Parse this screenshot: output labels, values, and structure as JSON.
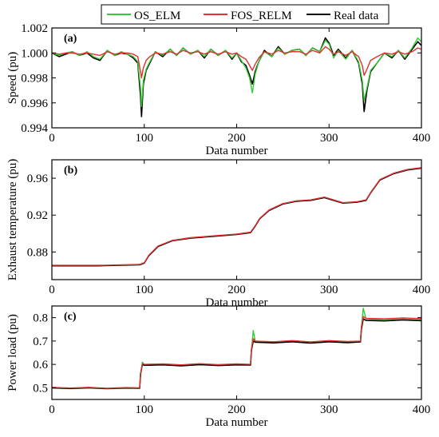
{
  "legend": [
    {
      "name": "OS_ELM",
      "color": "#33cc33"
    },
    {
      "name": "FOS_RELM",
      "color": "#e03030"
    },
    {
      "name": "Real data",
      "color": "#000000"
    }
  ],
  "chart_data": [
    {
      "type": "line",
      "panel_label": "(a)",
      "xlabel": "Data number",
      "ylabel": "Speed (pu)",
      "xlim": [
        0,
        400
      ],
      "ylim": [
        0.994,
        1.002
      ],
      "xticks": [
        0,
        100,
        200,
        300,
        400
      ],
      "yticks": [
        0.994,
        0.996,
        0.998,
        1.0,
        1.002
      ],
      "ytick_labels": [
        "0.994",
        "0.996",
        "0.998",
        "1.000",
        "1.002"
      ],
      "series": [
        {
          "name": "Real data",
          "color": "#000000",
          "x": [
            0,
            8,
            15,
            22,
            30,
            38,
            45,
            52,
            60,
            68,
            75,
            82,
            88,
            93,
            96,
            97,
            99,
            102,
            106,
            112,
            120,
            128,
            135,
            142,
            150,
            158,
            165,
            172,
            180,
            188,
            195,
            200,
            205,
            210,
            214,
            217,
            220,
            224,
            230,
            238,
            245,
            252,
            260,
            268,
            275,
            282,
            290,
            296,
            300,
            305,
            310,
            318,
            325,
            332,
            336,
            338,
            341,
            345,
            352,
            360,
            368,
            375,
            382,
            390,
            396,
            400
          ],
          "y": [
            1.0,
            0.9997,
            0.9999,
            1.0001,
            0.9998,
            1.0,
            0.9996,
            0.9994,
            1.0002,
            0.9998,
            1.0,
            0.9999,
            0.9996,
            0.9992,
            0.9965,
            0.9949,
            0.9975,
            0.9986,
            0.9992,
            1.0001,
            0.9997,
            1.0003,
            0.9998,
            1.0004,
            0.9999,
            1.0002,
            0.9996,
            1.0003,
            0.9998,
            1.0002,
            0.9995,
            1.0,
            0.9993,
            0.999,
            0.9982,
            0.9975,
            0.9985,
            0.9993,
            1.0002,
            0.9997,
            1.0005,
            0.9999,
            1.0002,
            1.0003,
            0.9998,
            1.0004,
            1.0001,
            1.0012,
            1.0008,
            0.9998,
            1.0003,
            0.9996,
            1.0002,
            0.9992,
            0.9975,
            0.9953,
            0.997,
            0.9985,
            0.9992,
            1.0,
            0.9996,
            1.0002,
            0.9995,
            1.0003,
            1.0009,
            1.0006
          ]
        },
        {
          "name": "OS_ELM",
          "color": "#33cc33",
          "x": [
            0,
            8,
            15,
            22,
            30,
            38,
            45,
            52,
            60,
            68,
            75,
            82,
            88,
            93,
            96,
            97,
            99,
            102,
            106,
            112,
            120,
            128,
            135,
            142,
            150,
            158,
            165,
            172,
            180,
            188,
            195,
            200,
            205,
            210,
            214,
            217,
            220,
            224,
            230,
            238,
            245,
            252,
            260,
            268,
            275,
            282,
            290,
            296,
            300,
            305,
            310,
            318,
            325,
            332,
            336,
            338,
            341,
            345,
            352,
            360,
            368,
            375,
            382,
            390,
            396,
            400
          ],
          "y": [
            1.0,
            0.9998,
            1.0,
            1.0001,
            0.9998,
            1.0001,
            0.9997,
            0.9995,
            1.0002,
            0.9998,
            1.0001,
            0.9999,
            0.9997,
            0.9993,
            0.9972,
            0.9957,
            0.9978,
            0.9987,
            0.9993,
            1.0001,
            0.9998,
            1.0003,
            0.9998,
            1.0004,
            0.9999,
            1.0002,
            0.9997,
            1.0003,
            0.9998,
            1.0002,
            0.9996,
            1.0,
            0.9994,
            0.9988,
            0.998,
            0.9968,
            0.9983,
            0.9993,
            1.0001,
            0.9997,
            1.0004,
            0.9999,
            1.0002,
            1.0003,
            0.9998,
            1.0004,
            1.0001,
            1.001,
            1.0007,
            0.9996,
            1.0002,
            0.9995,
            1.0002,
            0.9993,
            0.9978,
            0.9962,
            0.9972,
            0.9986,
            0.9992,
            1.0,
            0.9997,
            1.0002,
            0.9996,
            1.0004,
            1.0012,
            1.0009
          ]
        },
        {
          "name": "FOS_RELM",
          "color": "#e03030",
          "x": [
            0,
            8,
            15,
            22,
            30,
            38,
            45,
            52,
            60,
            68,
            75,
            82,
            88,
            93,
            96,
            97,
            99,
            102,
            106,
            112,
            120,
            128,
            135,
            142,
            150,
            158,
            165,
            172,
            180,
            188,
            195,
            200,
            205,
            210,
            214,
            217,
            220,
            224,
            230,
            238,
            245,
            252,
            260,
            268,
            275,
            282,
            290,
            296,
            300,
            305,
            310,
            318,
            325,
            332,
            336,
            338,
            341,
            345,
            352,
            360,
            368,
            375,
            382,
            390,
            396,
            400
          ],
          "y": [
            1.0,
            0.9999,
            1.0,
            1.0,
            0.9999,
            1.0,
            0.9999,
            0.9998,
            1.0001,
            0.9999,
            1.0,
            1.0,
            0.9999,
            0.9997,
            0.9985,
            0.998,
            0.9988,
            0.9994,
            0.9997,
            1.0,
            0.9999,
            1.0001,
            0.9999,
            1.0002,
            1.0,
            1.0001,
            0.9999,
            1.0001,
            0.9999,
            1.0001,
            0.9999,
            1.0,
            0.9997,
            0.9995,
            0.999,
            0.9986,
            0.9991,
            0.9996,
            1.0001,
            0.9999,
            1.0002,
            1.0,
            1.0001,
            1.0001,
            0.9999,
            1.0002,
            1.0,
            1.0005,
            1.0003,
            0.9999,
            1.0001,
            0.9998,
            1.0001,
            0.9997,
            0.999,
            0.9982,
            0.9987,
            0.9994,
            0.9997,
            1.0,
            0.9999,
            1.0001,
            0.9999,
            1.0001,
            1.0004,
            1.0003
          ]
        }
      ]
    },
    {
      "type": "line",
      "panel_label": "(b)",
      "xlabel": "Data number",
      "ylabel": "Exhaust temperature (pu)",
      "xlim": [
        0,
        400
      ],
      "ylim": [
        0.85,
        0.98
      ],
      "xticks": [
        0,
        100,
        200,
        300,
        400
      ],
      "yticks": [
        0.88,
        0.92,
        0.96
      ],
      "ytick_labels": [
        "0.88",
        "0.92",
        "0.96"
      ],
      "series": [
        {
          "name": "Real data",
          "color": "#000000",
          "x": [
            0,
            50,
            95,
            100,
            105,
            115,
            130,
            150,
            175,
            200,
            215,
            220,
            225,
            235,
            250,
            265,
            280,
            295,
            305,
            315,
            330,
            340,
            345,
            355,
            370,
            385,
            400
          ],
          "y": [
            0.865,
            0.865,
            0.866,
            0.868,
            0.876,
            0.886,
            0.892,
            0.895,
            0.897,
            0.899,
            0.901,
            0.908,
            0.916,
            0.925,
            0.932,
            0.935,
            0.936,
            0.939,
            0.936,
            0.933,
            0.934,
            0.936,
            0.944,
            0.958,
            0.965,
            0.969,
            0.971
          ]
        },
        {
          "name": "FOS_RELM",
          "color": "#e03030",
          "x": [
            0,
            50,
            95,
            100,
            105,
            115,
            130,
            150,
            175,
            200,
            215,
            220,
            225,
            235,
            250,
            265,
            280,
            295,
            305,
            315,
            330,
            340,
            345,
            355,
            370,
            385,
            400
          ],
          "y": [
            0.8655,
            0.8655,
            0.8665,
            0.8685,
            0.8765,
            0.8865,
            0.8925,
            0.8955,
            0.8975,
            0.8995,
            0.9015,
            0.9085,
            0.9165,
            0.9255,
            0.9325,
            0.9355,
            0.9365,
            0.9395,
            0.9365,
            0.9335,
            0.9345,
            0.9365,
            0.9445,
            0.9585,
            0.9655,
            0.9695,
            0.9715
          ]
        }
      ]
    },
    {
      "type": "line",
      "panel_label": "(c)",
      "xlabel": "Data number",
      "ylabel": "Power load (pu)",
      "xlim": [
        0,
        400
      ],
      "ylim": [
        0.45,
        0.85
      ],
      "xticks": [
        0,
        100,
        200,
        300,
        400
      ],
      "yticks": [
        0.5,
        0.6,
        0.7,
        0.8
      ],
      "ytick_labels": [
        "0.5",
        "0.6",
        "0.7",
        "0.8"
      ],
      "series": [
        {
          "name": "OS_ELM",
          "color": "#33cc33",
          "x": [
            0,
            20,
            40,
            60,
            80,
            95,
            96,
            98,
            100,
            120,
            140,
            160,
            180,
            200,
            215,
            216,
            218,
            220,
            240,
            260,
            280,
            300,
            320,
            334,
            335,
            337,
            340,
            360,
            380,
            400
          ],
          "y": [
            0.5,
            0.498,
            0.501,
            0.497,
            0.5,
            0.499,
            0.55,
            0.61,
            0.598,
            0.6,
            0.596,
            0.601,
            0.597,
            0.6,
            0.598,
            0.66,
            0.745,
            0.7,
            0.695,
            0.7,
            0.694,
            0.7,
            0.696,
            0.698,
            0.76,
            0.84,
            0.795,
            0.79,
            0.795,
            0.79
          ]
        },
        {
          "name": "Real data",
          "color": "#000000",
          "x": [
            0,
            20,
            40,
            60,
            80,
            95,
            96,
            98,
            100,
            120,
            140,
            160,
            180,
            200,
            215,
            216,
            218,
            220,
            240,
            260,
            280,
            300,
            320,
            334,
            335,
            337,
            340,
            360,
            380,
            400
          ],
          "y": [
            0.5,
            0.497,
            0.5,
            0.496,
            0.499,
            0.498,
            0.56,
            0.6,
            0.596,
            0.598,
            0.594,
            0.599,
            0.595,
            0.598,
            0.597,
            0.66,
            0.7,
            0.695,
            0.692,
            0.697,
            0.691,
            0.697,
            0.693,
            0.696,
            0.75,
            0.795,
            0.788,
            0.786,
            0.79,
            0.787
          ]
        },
        {
          "name": "FOS_RELM",
          "color": "#e03030",
          "x": [
            0,
            20,
            40,
            60,
            80,
            95,
            96,
            98,
            100,
            120,
            140,
            160,
            180,
            200,
            215,
            216,
            218,
            220,
            240,
            260,
            280,
            300,
            320,
            334,
            335,
            337,
            340,
            360,
            380,
            400
          ],
          "y": [
            0.502,
            0.499,
            0.502,
            0.498,
            0.501,
            0.5,
            0.56,
            0.604,
            0.6,
            0.602,
            0.598,
            0.603,
            0.599,
            0.602,
            0.6,
            0.665,
            0.71,
            0.7,
            0.697,
            0.702,
            0.696,
            0.702,
            0.698,
            0.7,
            0.76,
            0.805,
            0.797,
            0.795,
            0.799,
            0.796
          ]
        }
      ]
    }
  ]
}
